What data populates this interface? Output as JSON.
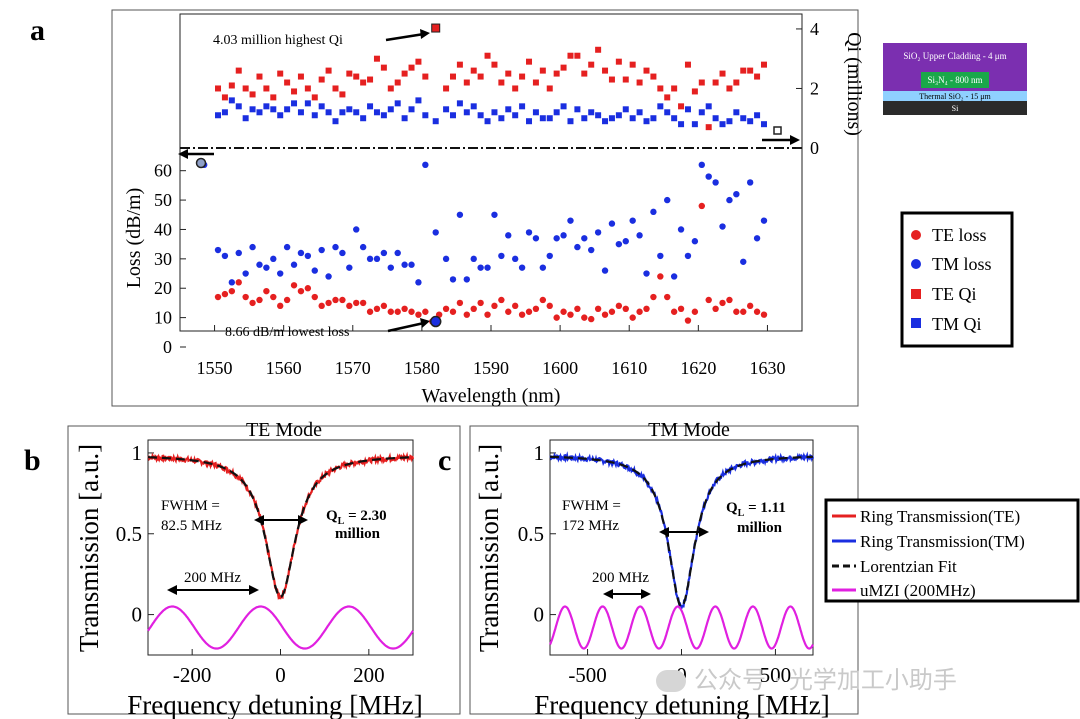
{
  "panels": {
    "a": "a",
    "b": "b",
    "c": "c"
  },
  "colors": {
    "te": "#e52020",
    "tm": "#1a2ee0",
    "fit": "#111111",
    "mzi": "#e020e0",
    "frame": "#555555"
  },
  "top_annotations": {
    "highest_qi": "4.03 million highest Qi",
    "lowest_loss": "8.66 dB/m lowest loss"
  },
  "layer_stack": {
    "cladding": "SiO₂ Upper Cladding - 4 μm",
    "core": "Si₃N₄ - 800 nm",
    "thermal": "Thermal SiO₂ - 15 μm",
    "substrate": "Si"
  },
  "panel_a_legend": [
    "TE loss",
    "TM loss",
    "TE Qi",
    "TM Qi"
  ],
  "bottom_legend": [
    "Ring Transmission(TE)",
    "Ring Transmission(TM)",
    "Lorentzian Fit",
    "uMZI (200MHz)"
  ],
  "panel_b_text": {
    "fwhm_line1": "FWHM =",
    "fwhm_line2": "82.5 MHz",
    "ql_line1": "Q",
    "ql_sub": "L",
    "ql_value": " = 2.30",
    "ql_line2": "million",
    "span": "200 MHz"
  },
  "panel_c_text": {
    "fwhm_line1": "FWHM =",
    "fwhm_line2": "172 MHz",
    "ql_line1": "Q",
    "ql_sub": "L",
    "ql_value": " =  1.11",
    "ql_line2": "million",
    "span": "200 MHz"
  },
  "watermark": "公众号 · 光学加工小助手",
  "chart_data": [
    {
      "type": "scatter",
      "title": "",
      "xlabel": "Wavelength  (nm)",
      "ylabel": "Loss  (dB/m)",
      "y2label": "Qi (millions)",
      "xlim": [
        1545,
        1635
      ],
      "xticks": [
        1550,
        1560,
        1570,
        1580,
        1590,
        1600,
        1610,
        1620,
        1630
      ],
      "ylim": [
        0,
        65
      ],
      "yticks": [
        0,
        10,
        20,
        30,
        40,
        50,
        60
      ],
      "y2lim": [
        0,
        4.3
      ],
      "y2ticks": [
        0,
        2,
        4
      ],
      "series": [
        {
          "name": "TE loss",
          "axis": "loss",
          "marker": "circle",
          "color": "#e52020",
          "x": [
            1550.5,
            1551.5,
            1552.5,
            1553.5,
            1554.5,
            1555.5,
            1556.5,
            1557.5,
            1558.5,
            1559.5,
            1560.5,
            1561.5,
            1562.5,
            1563.5,
            1564.5,
            1565.5,
            1566.5,
            1567.5,
            1568.5,
            1569.5,
            1570.5,
            1571.5,
            1572.5,
            1573.5,
            1574.5,
            1575.5,
            1576.5,
            1577.5,
            1578.5,
            1579.5,
            1580.5,
            1581.5,
            1582.5,
            1583.5,
            1584.5,
            1585.5,
            1586.5,
            1587.5,
            1588.5,
            1589.5,
            1590.5,
            1591.5,
            1592.5,
            1593.5,
            1594.5,
            1595.5,
            1596.5,
            1597.5,
            1598.5,
            1599.5,
            1600.5,
            1601.5,
            1602.5,
            1603.5,
            1604.5,
            1605.5,
            1606.5,
            1607.5,
            1608.5,
            1609.5,
            1610.5,
            1611.5,
            1612.5,
            1613.5,
            1614.5,
            1615.5,
            1616.5,
            1617.5,
            1618.5,
            1619.5,
            1620.5,
            1621.5,
            1622.5,
            1623.5,
            1624.5,
            1625.5,
            1626.5,
            1627.5,
            1628.5,
            1629.5
          ],
          "y": [
            17,
            18,
            19,
            22,
            17,
            15,
            16,
            19,
            17,
            14,
            16,
            21,
            19,
            20,
            17,
            14,
            15,
            16,
            16,
            14,
            15,
            15,
            12,
            13,
            14,
            12,
            12,
            13,
            12,
            11,
            12,
            8.66,
            11,
            13,
            12,
            15,
            11,
            13,
            15,
            11,
            14,
            16,
            12,
            14,
            11,
            12,
            13,
            16,
            14,
            10,
            12,
            11,
            13,
            10,
            9.5,
            13,
            11,
            12,
            14,
            13,
            10,
            12,
            13,
            17,
            24,
            17,
            12,
            13,
            9,
            12,
            48,
            16,
            13,
            15,
            16,
            12,
            12,
            14,
            12,
            11
          ]
        },
        {
          "name": "TM loss",
          "axis": "loss",
          "marker": "circle",
          "color": "#1a2ee0",
          "x": [
            1548.5,
            1550.5,
            1551.5,
            1552.5,
            1553.5,
            1554.5,
            1555.5,
            1556.5,
            1557.5,
            1558.5,
            1559.5,
            1560.5,
            1561.5,
            1562.5,
            1563.5,
            1564.5,
            1565.5,
            1566.5,
            1567.5,
            1568.5,
            1569.5,
            1570.5,
            1571.5,
            1572.5,
            1573.5,
            1574.5,
            1575.5,
            1576.5,
            1577.5,
            1578.5,
            1579.5,
            1580.5,
            1582,
            1583.5,
            1584.5,
            1585.5,
            1586.5,
            1587.5,
            1588.5,
            1589.5,
            1590.5,
            1591.5,
            1592.5,
            1593.5,
            1594.5,
            1595.5,
            1596.5,
            1597.5,
            1598.5,
            1599.5,
            1600.5,
            1601.5,
            1602.5,
            1603.5,
            1604.5,
            1605.5,
            1606.5,
            1607.5,
            1608.5,
            1609.5,
            1610.5,
            1611.5,
            1612.5,
            1613.5,
            1614.5,
            1615.5,
            1616.5,
            1617.5,
            1618.5,
            1619.5,
            1620.5,
            1621.5,
            1622.5,
            1623.5,
            1624.5,
            1625.5,
            1626.5,
            1627.5,
            1628.5,
            1629.5
          ],
          "y": [
            62,
            33,
            31,
            22,
            32,
            25,
            34,
            28,
            27,
            30,
            25,
            34,
            28,
            32,
            31,
            26,
            33,
            24,
            34,
            32,
            27,
            40,
            34,
            30,
            30,
            32,
            27,
            32,
            28,
            28,
            22,
            62,
            39,
            30,
            23,
            45,
            23,
            30,
            27,
            27,
            45,
            31,
            38,
            30,
            27,
            39,
            37,
            27,
            31,
            37,
            38,
            43,
            34,
            37,
            33,
            39,
            26,
            42,
            35,
            36,
            43,
            38,
            25,
            46,
            31,
            50,
            24,
            40,
            31,
            36,
            62,
            58,
            56,
            41,
            50,
            52,
            29,
            56,
            37,
            43
          ]
        },
        {
          "name": "TE Qi",
          "axis": "qi",
          "marker": "square",
          "color": "#e52020",
          "x": [
            1550.5,
            1551.5,
            1552.5,
            1553.5,
            1554.5,
            1555.5,
            1556.5,
            1557.5,
            1558.5,
            1559.5,
            1560.5,
            1561.5,
            1562.5,
            1563.5,
            1564.5,
            1565.5,
            1566.5,
            1567.5,
            1568.5,
            1569.5,
            1570.5,
            1571.5,
            1572.5,
            1573.5,
            1574.5,
            1575.5,
            1576.5,
            1577.5,
            1578.5,
            1579.5,
            1580.5,
            1582,
            1583.5,
            1584.5,
            1585.5,
            1586.5,
            1587.5,
            1588.5,
            1589.5,
            1590.5,
            1591.5,
            1592.5,
            1593.5,
            1594.5,
            1595.5,
            1596.5,
            1597.5,
            1598.5,
            1599.5,
            1600.5,
            1601.5,
            1602.5,
            1603.5,
            1604.5,
            1605.5,
            1606.5,
            1607.5,
            1608.5,
            1609.5,
            1610.5,
            1611.5,
            1612.5,
            1613.5,
            1614.5,
            1615.5,
            1616.5,
            1617.5,
            1618.5,
            1619.5,
            1620.5,
            1621.5,
            1622.5,
            1623.5,
            1624.5,
            1625.5,
            1626.5,
            1627.5,
            1628.5,
            1629.5
          ],
          "y": [
            2.0,
            1.7,
            2.1,
            2.6,
            2.0,
            1.8,
            2.4,
            2.0,
            1.7,
            2.5,
            2.2,
            1.9,
            2.4,
            2.0,
            1.7,
            2.3,
            2.6,
            2.0,
            1.8,
            2.5,
            2.4,
            2.2,
            2.3,
            3.0,
            2.7,
            2.0,
            2.2,
            2.5,
            2.7,
            2.9,
            2.4,
            4.03,
            2.0,
            2.4,
            2.8,
            2.2,
            2.6,
            2.4,
            3.1,
            2.8,
            2.2,
            2.5,
            2.0,
            2.4,
            2.9,
            2.2,
            2.6,
            2.0,
            2.5,
            2.7,
            3.1,
            3.1,
            2.5,
            2.8,
            3.3,
            2.6,
            2.3,
            2.9,
            2.3,
            2.8,
            2.2,
            2.6,
            2.4,
            2.0,
            1.7,
            2.0,
            1.4,
            2.8,
            1.9,
            2.2,
            0.7,
            2.2,
            2.5,
            2.0,
            2.2,
            2.6,
            2.6,
            2.4,
            2.8
          ]
        },
        {
          "name": "TM Qi",
          "axis": "qi",
          "marker": "square",
          "color": "#1a2ee0",
          "x": [
            1550.5,
            1551.5,
            1552.5,
            1553.5,
            1554.5,
            1555.5,
            1556.5,
            1557.5,
            1558.5,
            1559.5,
            1560.5,
            1561.5,
            1562.5,
            1563.5,
            1564.5,
            1565.5,
            1566.5,
            1567.5,
            1568.5,
            1569.5,
            1570.5,
            1571.5,
            1572.5,
            1573.5,
            1574.5,
            1575.5,
            1576.5,
            1577.5,
            1578.5,
            1579.5,
            1580.5,
            1582,
            1583.5,
            1584.5,
            1585.5,
            1586.5,
            1587.5,
            1588.5,
            1589.5,
            1590.5,
            1591.5,
            1592.5,
            1593.5,
            1594.5,
            1595.5,
            1596.5,
            1597.5,
            1598.5,
            1599.5,
            1600.5,
            1601.5,
            1602.5,
            1603.5,
            1604.5,
            1605.5,
            1606.5,
            1607.5,
            1608.5,
            1609.5,
            1610.5,
            1611.5,
            1612.5,
            1613.5,
            1614.5,
            1615.5,
            1616.5,
            1617.5,
            1618.5,
            1619.5,
            1620.5,
            1621.5,
            1622.5,
            1623.5,
            1624.5,
            1625.5,
            1626.5,
            1627.5,
            1628.5,
            1629.5,
            1631.5
          ],
          "y": [
            1.1,
            1.2,
            1.6,
            1.4,
            1.0,
            1.3,
            1.2,
            1.4,
            1.3,
            1.1,
            1.3,
            1.5,
            1.2,
            1.5,
            1.1,
            1.4,
            1.2,
            0.9,
            1.2,
            1.3,
            1.2,
            1.0,
            1.4,
            1.2,
            1.1,
            1.3,
            1.5,
            1.0,
            1.3,
            1.6,
            1.1,
            0.9,
            1.3,
            1.1,
            1.5,
            1.2,
            1.4,
            1.1,
            0.9,
            1.2,
            1.0,
            1.3,
            1.1,
            1.4,
            0.9,
            1.2,
            1.0,
            1.0,
            1.2,
            1.4,
            0.9,
            1.3,
            1.0,
            1.2,
            1.1,
            0.9,
            1.0,
            1.1,
            1.3,
            1.0,
            1.2,
            0.9,
            1.0,
            1.4,
            1.2,
            1.0,
            0.8,
            1.3,
            0.8,
            1.2,
            1.4,
            1.0,
            0.8,
            0.9,
            1.2,
            1.0,
            0.9,
            1.1,
            0.8,
            0.6
          ]
        }
      ],
      "arrows": [
        {
          "label": "left",
          "direction": "left",
          "axis": "loss"
        },
        {
          "label": "right",
          "direction": "right",
          "axis": "qi"
        }
      ]
    },
    {
      "type": "line",
      "title": "TE Mode",
      "xlabel": "Frequency detuning [MHz]",
      "ylabel": "Transmission [a.u.]",
      "xlim": [
        -300,
        300
      ],
      "xticks": [
        -200,
        0,
        200
      ],
      "ylim": [
        -0.25,
        1.08
      ],
      "yticks": [
        0,
        0.5,
        1
      ],
      "ytick_labels": [
        "0",
        "0.5",
        "1"
      ],
      "resonance": {
        "center": 0,
        "fwhm_mhz": 82.5,
        "baseline": 0.99,
        "min": 0.11
      },
      "mzi": {
        "period_mhz": 200,
        "mean": -0.08,
        "amplitude": 0.13,
        "peak_at": -45
      },
      "series": [
        {
          "name": "Ring Transmission(TE)",
          "color": "#e52020"
        },
        {
          "name": "Lorentzian Fit",
          "color": "#111111",
          "dashed": true
        },
        {
          "name": "uMZI (200MHz)",
          "color": "#e020e0"
        }
      ]
    },
    {
      "type": "line",
      "title": "TM Mode",
      "xlabel": "Frequency detuning [MHz]",
      "ylabel": "Transmission [a.u.]",
      "xlim": [
        -700,
        700
      ],
      "xticks": [
        -500,
        0,
        500
      ],
      "ylim": [
        -0.25,
        1.08
      ],
      "yticks": [
        0,
        0.5,
        1
      ],
      "ytick_labels": [
        "0",
        "0.5",
        "1"
      ],
      "resonance": {
        "center": 0,
        "fwhm_mhz": 172,
        "baseline": 0.99,
        "min": 0.05
      },
      "mzi": {
        "period_mhz": 200,
        "mean": -0.08,
        "amplitude": 0.13,
        "peak_at": -20
      },
      "series": [
        {
          "name": "Ring Transmission(TM)",
          "color": "#1a2ee0"
        },
        {
          "name": "Lorentzian Fit",
          "color": "#111111",
          "dashed": true
        },
        {
          "name": "uMZI (200MHz)",
          "color": "#e020e0"
        }
      ]
    }
  ]
}
